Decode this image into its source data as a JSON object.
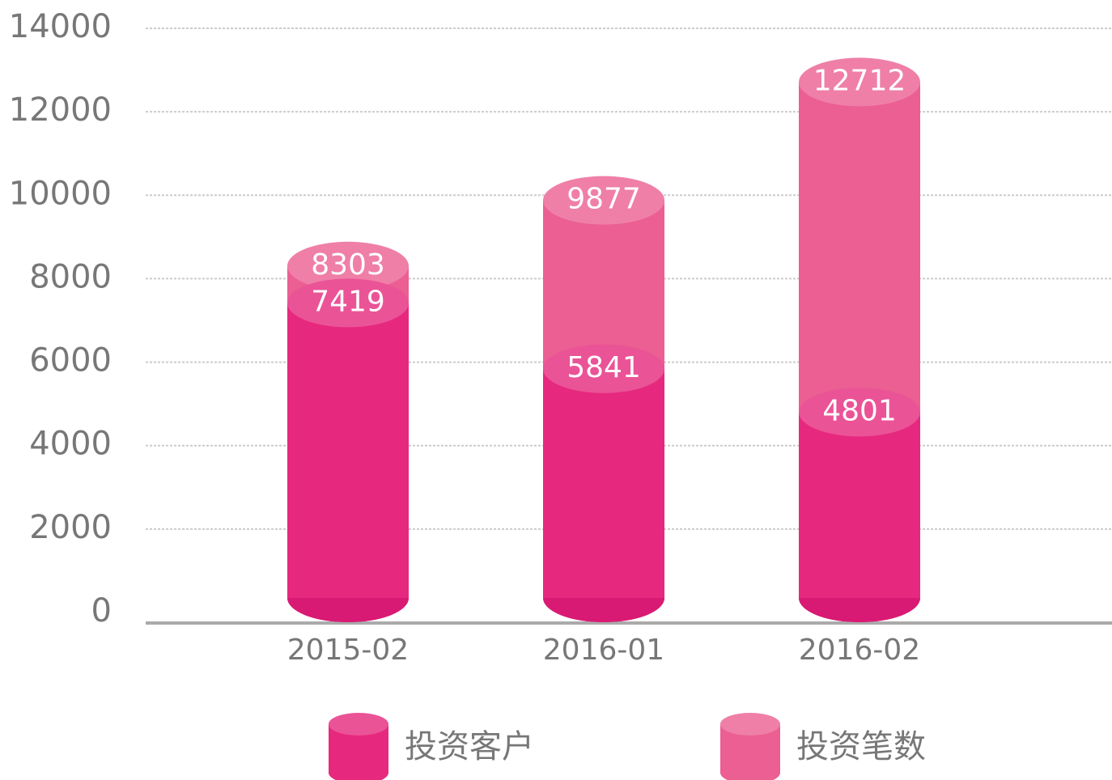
{
  "chart_data": {
    "type": "cylinder",
    "categories": [
      "2015-02",
      "2016-01",
      "2016-02"
    ],
    "series": [
      {
        "name": "投资笔数",
        "color": "#eb5f92",
        "values": [
          8303,
          9877,
          12712
        ]
      },
      {
        "name": "投资客户",
        "color": "#e6297e",
        "values": [
          7419,
          5841,
          4801
        ]
      }
    ],
    "ylim": [
      0,
      14000
    ],
    "yticks": [
      0,
      2000,
      4000,
      6000,
      8000,
      10000,
      12000,
      14000
    ],
    "grid": true
  }
}
